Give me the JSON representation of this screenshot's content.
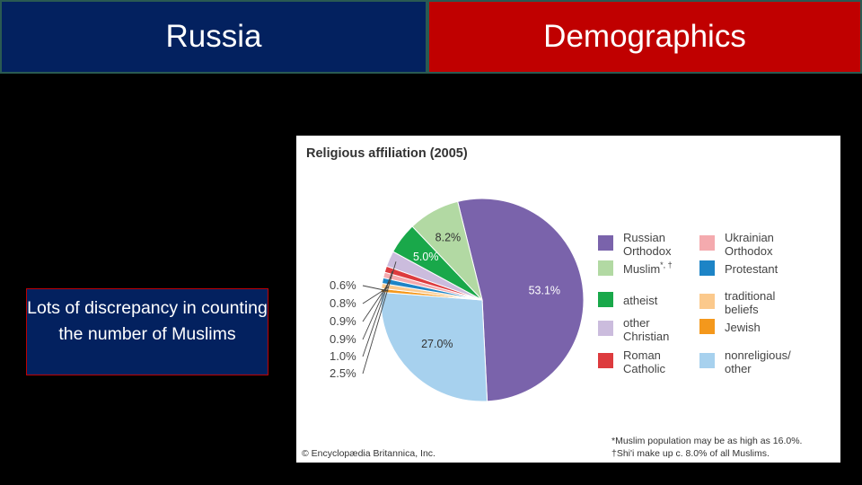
{
  "slide": {
    "title_left": "Russia",
    "title_right": "Demographics",
    "note": "Lots of discrepancy in counting the number of Muslims"
  },
  "colors": {
    "header_left_bg": "#03215f",
    "header_right_bg": "#c00000"
  },
  "chart_data": {
    "type": "pie",
    "title": "Religious affiliation (2005)",
    "slices": [
      {
        "name": "Russian Orthodox",
        "value": 53.1,
        "label": "53.1%",
        "color": "#7a63ab"
      },
      {
        "name": "nonreligious/ other",
        "value": 27.0,
        "label": "27.0%",
        "color": "#a7d1ee"
      },
      {
        "name": "Jewish",
        "value": 0.6,
        "label": "0.6%",
        "color": "#f4981c"
      },
      {
        "name": "traditional beliefs",
        "value": 0.8,
        "label": "0.8%",
        "color": "#fbc98c"
      },
      {
        "name": "Protestant",
        "value": 0.9,
        "label": "0.9%",
        "color": "#1d84c6"
      },
      {
        "name": "Ukrainian Orthodox",
        "value": 0.9,
        "label": "0.9%",
        "color": "#f4aaae"
      },
      {
        "name": "Roman Catholic",
        "value": 1.0,
        "label": "1.0%",
        "color": "#dd3b3e"
      },
      {
        "name": "other Christian",
        "value": 2.5,
        "label": "2.5%",
        "color": "#cbbcdd"
      },
      {
        "name": "atheist",
        "value": 5.0,
        "label": "5.0%",
        "color": "#19a84a"
      },
      {
        "name": "Muslim",
        "value": 8.2,
        "label": "8.2%",
        "color": "#b2d9a3"
      }
    ],
    "legend": {
      "placement": "right",
      "left_column": [
        {
          "lines": [
            "Russian",
            "Orthodox"
          ],
          "color": "#7a63ab"
        },
        {
          "lines": [
            "Muslim"
          ],
          "sup": "*, †",
          "color": "#b2d9a3"
        },
        {
          "lines": [
            "atheist"
          ],
          "color": "#19a84a"
        },
        {
          "lines": [
            "other",
            "Christian"
          ],
          "color": "#cbbcdd"
        },
        {
          "lines": [
            "Roman",
            "Catholic"
          ],
          "color": "#dd3b3e"
        }
      ],
      "right_column": [
        {
          "lines": [
            "Ukrainian",
            "Orthodox"
          ],
          "color": "#f4aaae"
        },
        {
          "lines": [
            "Protestant"
          ],
          "color": "#1d84c6"
        },
        {
          "lines": [
            "traditional",
            "beliefs"
          ],
          "color": "#fbc98c"
        },
        {
          "lines": [
            "Jewish"
          ],
          "color": "#f4981c"
        },
        {
          "lines": [
            "nonreligious/",
            "other"
          ],
          "color": "#a7d1ee"
        }
      ]
    },
    "copyright": "© Encyclopædia Britannica, Inc.",
    "footnotes": [
      "*Muslim population may be as high as 16.0%.",
      "†Shi'i make up c. 8.0% of all Muslims."
    ]
  }
}
